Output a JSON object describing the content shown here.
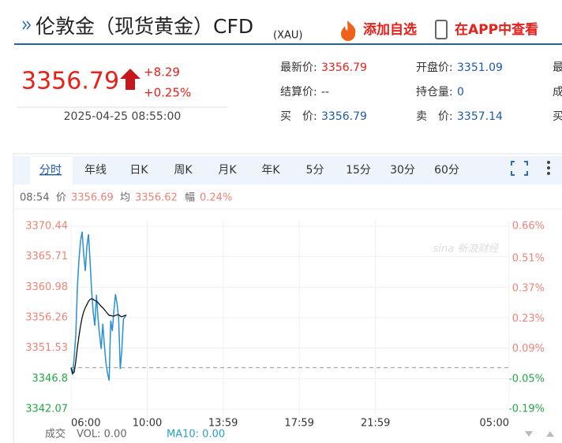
{
  "header": {
    "title": "伦敦金（现货黄金）CFD",
    "code": "(XAU)",
    "add_watch": "添加自选",
    "open_app": "在APP中查看"
  },
  "quote": {
    "price": "3356.79",
    "change": "+8.29",
    "change_pct": "+0.25%",
    "time": "2025-04-25 08:55:00",
    "fields": [
      {
        "label": "最新价:",
        "value": "3356.79"
      },
      {
        "label": "开盘价:",
        "value": "3351.09"
      },
      {
        "label": "最"
      },
      {
        "label": "结算价:",
        "value": "--"
      },
      {
        "label": "持仓量:",
        "value": "0"
      },
      {
        "label": "成"
      },
      {
        "label": "买　价:",
        "value": "3356.79"
      },
      {
        "label": "卖　价:",
        "value": "3357.14"
      },
      {
        "label": "买"
      }
    ]
  },
  "tabs": [
    "分时",
    "年线",
    "日K",
    "周K",
    "月K",
    "年K",
    "5分",
    "15分",
    "30分",
    "60分"
  ],
  "info": {
    "change_label": "幅",
    "change": "0.24%"
  },
  "volume": {
    "label": "成交",
    "vol": "VOL: 0.00",
    "ma10": "MA10: 0.00"
  },
  "watermark": "sina 新浪财经",
  "chart_data": {
    "type": "line",
    "x": [
      "06:00",
      "06:05",
      "06:10",
      "06:15",
      "06:20",
      "06:25",
      "06:30",
      "06:35",
      "06:40",
      "06:45",
      "06:50",
      "06:55",
      "07:00",
      "07:05",
      "07:10",
      "07:15",
      "07:20",
      "07:25",
      "07:30",
      "07:35",
      "07:40",
      "07:45",
      "07:50",
      "07:55",
      "08:00",
      "08:05",
      "08:10",
      "08:15",
      "08:20",
      "08:25",
      "08:30",
      "08:35",
      "08:40",
      "08:45",
      "08:50",
      "08:54"
    ],
    "series": [
      {
        "name": "价",
        "color": "#2a8fd4",
        "values": [
          3348.5,
          3347.4,
          3350.2,
          3353.6,
          3361.0,
          3365.3,
          3368.2,
          3369.6,
          3366.0,
          3363.5,
          3367.4,
          3369.2,
          3365.0,
          3360.3,
          3357.0,
          3355.0,
          3359.8,
          3356.2,
          3353.5,
          3351.4,
          3355.3,
          3352.0,
          3349.2,
          3347.6,
          3346.5,
          3355.8,
          3354.2,
          3357.3,
          3359.9,
          3358.4,
          3356.1,
          3348.3,
          3351.2,
          3356.0,
          3356.4,
          3356.69
        ]
      },
      {
        "name": "均",
        "color": "#111111",
        "values": [
          3348.5,
          3347.6,
          3347.8,
          3349.5,
          3351.6,
          3353.4,
          3355.0,
          3356.3,
          3357.2,
          3357.8,
          3358.3,
          3358.8,
          3359.1,
          3359.2,
          3359.1,
          3358.9,
          3358.8,
          3358.6,
          3358.3,
          3358.0,
          3357.8,
          3357.5,
          3357.2,
          3356.9,
          3356.6,
          3356.6,
          3356.5,
          3356.5,
          3356.6,
          3356.7,
          3356.7,
          3356.5,
          3356.4,
          3356.5,
          3356.6,
          3356.62
        ]
      }
    ],
    "prev_close": 3348.5,
    "xlim": [
      "06:00",
      "05:00"
    ],
    "xticks": [
      "06:00",
      "10:00",
      "13:59",
      "17:59",
      "21:59",
      "05:00"
    ],
    "ylim": [
      3342.07,
      3370.44
    ],
    "yticks": [
      3370.44,
      3365.71,
      3360.98,
      3356.26,
      3351.53,
      3346.8,
      3342.07
    ],
    "y2lim": [
      -0.19,
      0.66
    ],
    "y2ticks": [
      {
        "value": 0.66,
        "label": "0.66%"
      },
      {
        "value": 0.51,
        "label": "0.51%"
      },
      {
        "value": 0.37,
        "label": "0.37%"
      },
      {
        "value": 0.23,
        "label": "0.23%"
      },
      {
        "value": 0.09,
        "label": "0.09%"
      },
      {
        "value": -0.05,
        "label": "-0.05%"
      },
      {
        "value": -0.19,
        "label": "-0.19%"
      }
    ],
    "up_color": "#ef8378",
    "down_color": "#22a845",
    "grid": true
  }
}
